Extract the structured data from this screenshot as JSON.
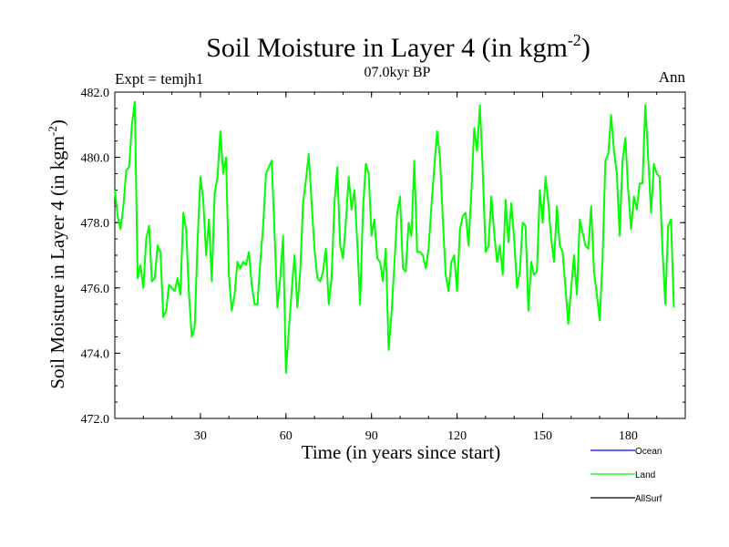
{
  "chart_data": {
    "type": "line",
    "title": "Soil Moisture in Layer 4 (in kgm",
    "title_sup": "-2",
    "title_close": ")",
    "subtitle": "07.0kyr BP",
    "left_label": "Expt = temjh1",
    "right_label": "Ann",
    "xlabel": "Time (in years since start)",
    "ylabel": "Soil Moisture in Layer 4 (in kgm",
    "ylabel_sup": "-2",
    "ylabel_close": ")",
    "xlim": [
      0,
      200
    ],
    "ylim": [
      472,
      482
    ],
    "x_ticks": [
      30,
      60,
      90,
      120,
      150,
      180
    ],
    "x_tick_labels": [
      "30",
      "60",
      "90",
      "120",
      "150",
      "180"
    ],
    "y_ticks": [
      472,
      474,
      476,
      478,
      480,
      482
    ],
    "y_tick_labels": [
      "472.0",
      "474.0",
      "476.0",
      "478.0",
      "480.0",
      "482.0"
    ],
    "legend": [
      {
        "name": "Ocean",
        "color": "#0000ff"
      },
      {
        "name": "Land",
        "color": "#00ff00"
      },
      {
        "name": "AllSurf",
        "color": "#000000"
      }
    ],
    "series": [
      {
        "name": "Land",
        "color": "#00ff00",
        "x_start": 0,
        "x_step": 1,
        "values": [
          479.0,
          478.2,
          477.8,
          478.5,
          479.6,
          479.7,
          481.0,
          481.7,
          476.3,
          476.7,
          476.0,
          477.5,
          477.9,
          476.2,
          476.3,
          477.3,
          477.1,
          475.1,
          475.3,
          476.1,
          476.0,
          475.9,
          476.3,
          475.8,
          478.3,
          477.8,
          475.8,
          474.5,
          474.8,
          477.4,
          479.4,
          478.7,
          477.0,
          478.1,
          476.2,
          478.9,
          479.4,
          480.8,
          479.5,
          480.0,
          476.4,
          475.3,
          475.8,
          476.8,
          476.6,
          476.8,
          476.7,
          477.1,
          476.1,
          475.5,
          475.5,
          476.8,
          477.9,
          479.5,
          479.7,
          479.9,
          477.7,
          475.4,
          476.3,
          477.6,
          473.4,
          474.7,
          475.9,
          477.0,
          475.4,
          476.5,
          478.6,
          479.3,
          480.1,
          478.6,
          477.2,
          476.3,
          476.2,
          476.5,
          477.2,
          475.5,
          476.3,
          478.6,
          479.7,
          477.3,
          476.9,
          478.0,
          479.4,
          478.4,
          479.0,
          477.4,
          475.5,
          478.4,
          479.8,
          479.5,
          477.6,
          478.1,
          476.9,
          476.8,
          476.2,
          477.2,
          474.1,
          475.2,
          476.7,
          478.3,
          478.8,
          476.6,
          476.5,
          478.0,
          477.6,
          479.9,
          477.1,
          477.1,
          477.0,
          476.6,
          477.2,
          478.5,
          479.7,
          480.8,
          480.0,
          478.1,
          476.4,
          475.9,
          476.8,
          477.0,
          475.9,
          477.8,
          478.2,
          478.3,
          477.3,
          478.9,
          480.9,
          480.2,
          481.6,
          479.6,
          477.1,
          477.3,
          478.8,
          477.7,
          476.8,
          477.3,
          476.4,
          478.7,
          477.4,
          478.6,
          477.5,
          476.0,
          476.5,
          478.0,
          477.9,
          475.3,
          476.8,
          476.4,
          476.5,
          479.0,
          478.0,
          479.4,
          478.6,
          477.5,
          476.8,
          478.5,
          477.3,
          477.1,
          476.0,
          474.9,
          476.0,
          477.0,
          475.8,
          478.1,
          477.7,
          477.3,
          477.2,
          478.5,
          476.5,
          475.8,
          475.0,
          476.9,
          479.9,
          480.1,
          481.3,
          480.2,
          479.5,
          477.6,
          479.9,
          480.6,
          479.0,
          477.8,
          478.8,
          478.4,
          479.2,
          479.2,
          481.6,
          480.0,
          478.3,
          479.8,
          479.5,
          479.4,
          477.2,
          475.5,
          477.9,
          478.1,
          475.4
        ]
      }
    ]
  }
}
